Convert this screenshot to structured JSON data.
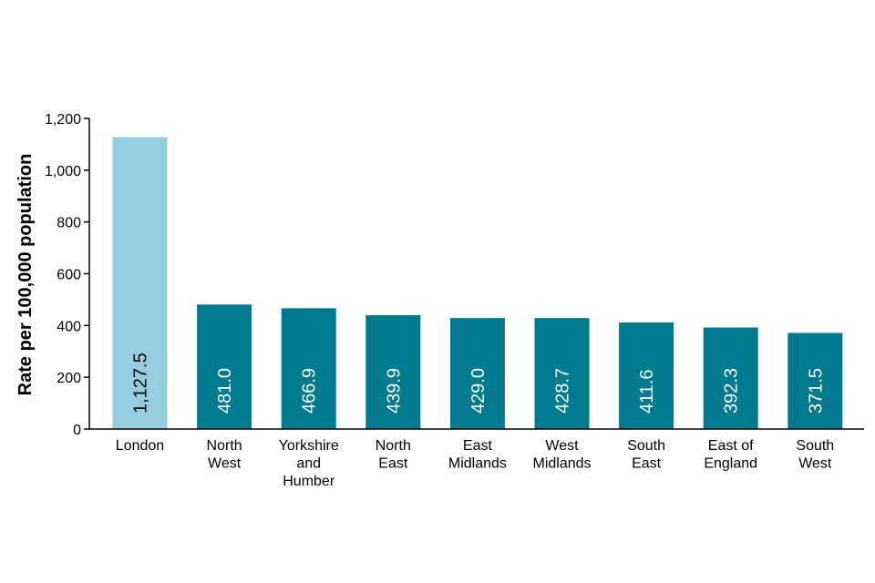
{
  "chart_data": {
    "type": "bar",
    "title": "",
    "xlabel": "",
    "ylabel": "Rate per 100,000 population",
    "ylim": [
      0,
      1200
    ],
    "yticks": [
      0,
      200,
      400,
      600,
      800,
      1000,
      1200
    ],
    "ytick_labels": [
      "0",
      "200",
      "400",
      "600",
      "800",
      "1,000",
      "1,200"
    ],
    "grid": false,
    "legend": "none",
    "categories": [
      [
        "London"
      ],
      [
        "North",
        "West"
      ],
      [
        "Yorkshire",
        "and",
        "Humber"
      ],
      [
        "North",
        "East"
      ],
      [
        "East",
        "Midlands"
      ],
      [
        "West",
        "Midlands"
      ],
      [
        "South",
        "East"
      ],
      [
        "East of",
        "England"
      ],
      [
        "South",
        "West"
      ]
    ],
    "values": [
      1127.5,
      481.0,
      466.9,
      439.9,
      429.0,
      428.7,
      411.6,
      392.3,
      371.5
    ],
    "data_labels": [
      "1,127.5",
      "481.0",
      "466.9",
      "439.9",
      "429.0",
      "428.7",
      "411.6",
      "392.3",
      "371.5"
    ],
    "colors": [
      "#96cde0",
      "#007a8e",
      "#007a8e",
      "#007a8e",
      "#007a8e",
      "#007a8e",
      "#007a8e",
      "#007a8e",
      "#007a8e"
    ],
    "label_colors": [
      "#000000",
      "#ffffff",
      "#ffffff",
      "#ffffff",
      "#ffffff",
      "#ffffff",
      "#ffffff",
      "#ffffff",
      "#ffffff"
    ]
  }
}
